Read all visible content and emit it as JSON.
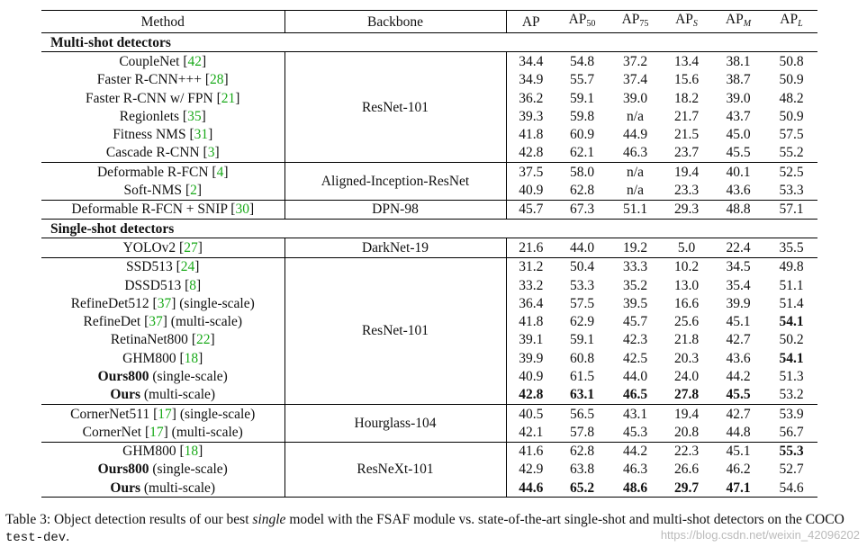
{
  "table": {
    "headers": {
      "method": "Method",
      "backbone": "Backbone",
      "ap": "AP",
      "ap50": [
        "AP",
        "50"
      ],
      "ap75": [
        "AP",
        "75"
      ],
      "aps": [
        "AP",
        "S"
      ],
      "apm": [
        "AP",
        "M"
      ],
      "apl": [
        "AP",
        "L"
      ]
    },
    "sections": {
      "multi": "Multi-shot detectors",
      "single": "Single-shot detectors"
    },
    "rows": [
      {
        "name": "CoupleNet",
        "ref": "42",
        "suffix": "",
        "values": [
          "34.4",
          "54.8",
          "37.2",
          "13.4",
          "38.1",
          "50.8"
        ]
      },
      {
        "name": "Faster R-CNN+++",
        "ref": "28",
        "suffix": "",
        "values": [
          "34.9",
          "55.7",
          "37.4",
          "15.6",
          "38.7",
          "50.9"
        ]
      },
      {
        "name": "Faster R-CNN w/ FPN",
        "ref": "21",
        "suffix": "",
        "values": [
          "36.2",
          "59.1",
          "39.0",
          "18.2",
          "39.0",
          "48.2"
        ]
      },
      {
        "name": "Regionlets",
        "ref": "35",
        "suffix": "",
        "values": [
          "39.3",
          "59.8",
          "n/a",
          "21.7",
          "43.7",
          "50.9"
        ]
      },
      {
        "name": "Fitness NMS",
        "ref": "31",
        "suffix": "",
        "values": [
          "41.8",
          "60.9",
          "44.9",
          "21.5",
          "45.0",
          "57.5"
        ]
      },
      {
        "name": "Cascade R-CNN",
        "ref": "3",
        "suffix": "",
        "values": [
          "42.8",
          "62.1",
          "46.3",
          "23.7",
          "45.5",
          "55.2"
        ]
      },
      {
        "name": "Deformable R-FCN",
        "ref": "4",
        "suffix": "",
        "values": [
          "37.5",
          "58.0",
          "n/a",
          "19.4",
          "40.1",
          "52.5"
        ]
      },
      {
        "name": "Soft-NMS",
        "ref": "2",
        "suffix": "",
        "values": [
          "40.9",
          "62.8",
          "n/a",
          "23.3",
          "43.6",
          "53.3"
        ]
      },
      {
        "name": "Deformable R-FCN + SNIP",
        "ref": "30",
        "suffix": "",
        "values": [
          "45.7",
          "67.3",
          "51.1",
          "29.3",
          "48.8",
          "57.1"
        ]
      },
      {
        "name": "YOLOv2",
        "ref": "27",
        "suffix": "",
        "values": [
          "21.6",
          "44.0",
          "19.2",
          "5.0",
          "22.4",
          "35.5"
        ]
      },
      {
        "name": "SSD513",
        "ref": "24",
        "suffix": "",
        "values": [
          "31.2",
          "50.4",
          "33.3",
          "10.2",
          "34.5",
          "49.8"
        ]
      },
      {
        "name": "DSSD513",
        "ref": "8",
        "suffix": "",
        "values": [
          "33.2",
          "53.3",
          "35.2",
          "13.0",
          "35.4",
          "51.1"
        ]
      },
      {
        "name": "RefineDet512",
        "ref": "37",
        "suffix": " (single-scale)",
        "values": [
          "36.4",
          "57.5",
          "39.5",
          "16.6",
          "39.9",
          "51.4"
        ]
      },
      {
        "name": "RefineDet",
        "ref": "37",
        "suffix": " (multi-scale)",
        "values": [
          "41.8",
          "62.9",
          "45.7",
          "25.6",
          "45.1",
          "54.1"
        ]
      },
      {
        "name": "RetinaNet800",
        "ref": "22",
        "suffix": "",
        "values": [
          "39.1",
          "59.1",
          "42.3",
          "21.8",
          "42.7",
          "50.2"
        ]
      },
      {
        "name": "GHM800",
        "ref": "18",
        "suffix": "",
        "values": [
          "39.9",
          "60.8",
          "42.5",
          "20.3",
          "43.6",
          "54.1"
        ]
      },
      {
        "name": "Ours800",
        "ref": "",
        "suffix": " (single-scale)",
        "values": [
          "40.9",
          "61.5",
          "44.0",
          "24.0",
          "44.2",
          "51.3"
        ]
      },
      {
        "name": "Ours",
        "ref": "",
        "suffix": " (multi-scale)",
        "values": [
          "42.8",
          "63.1",
          "46.5",
          "27.8",
          "45.5",
          "53.2"
        ]
      },
      {
        "name": "CornerNet511",
        "ref": "17",
        "suffix": " (single-scale)",
        "values": [
          "40.5",
          "56.5",
          "43.1",
          "19.4",
          "42.7",
          "53.9"
        ]
      },
      {
        "name": "CornerNet",
        "ref": "17",
        "suffix": " (multi-scale)",
        "values": [
          "42.1",
          "57.8",
          "45.3",
          "20.8",
          "44.8",
          "56.7"
        ]
      },
      {
        "name": "GHM800",
        "ref": "18",
        "suffix": "",
        "values": [
          "41.6",
          "62.8",
          "44.2",
          "22.3",
          "45.1",
          "55.3"
        ]
      },
      {
        "name": "Ours800",
        "ref": "",
        "suffix": " (single-scale)",
        "values": [
          "42.9",
          "63.8",
          "46.3",
          "26.6",
          "46.2",
          "52.7"
        ]
      },
      {
        "name": "Ours",
        "ref": "",
        "suffix": " (multi-scale)",
        "values": [
          "44.6",
          "65.2",
          "48.6",
          "29.7",
          "47.1",
          "54.6"
        ]
      }
    ],
    "backbones": [
      "ResNet-101",
      "Aligned-Inception-ResNet",
      "DPN-98",
      "DarkNet-19",
      "ResNet-101",
      "Hourglass-104",
      "ResNeXt-101"
    ]
  },
  "caption": {
    "label": "Table 3:",
    "text1": " Object detection results of our best ",
    "emph": "single",
    "text2": " model with the FSAF module vs. state-of-the-art single-shot and multi-shot detectors on the COCO ",
    "code": "test-dev",
    "end": "."
  },
  "watermark": "https://blog.csdn.net/weixin_42096202"
}
